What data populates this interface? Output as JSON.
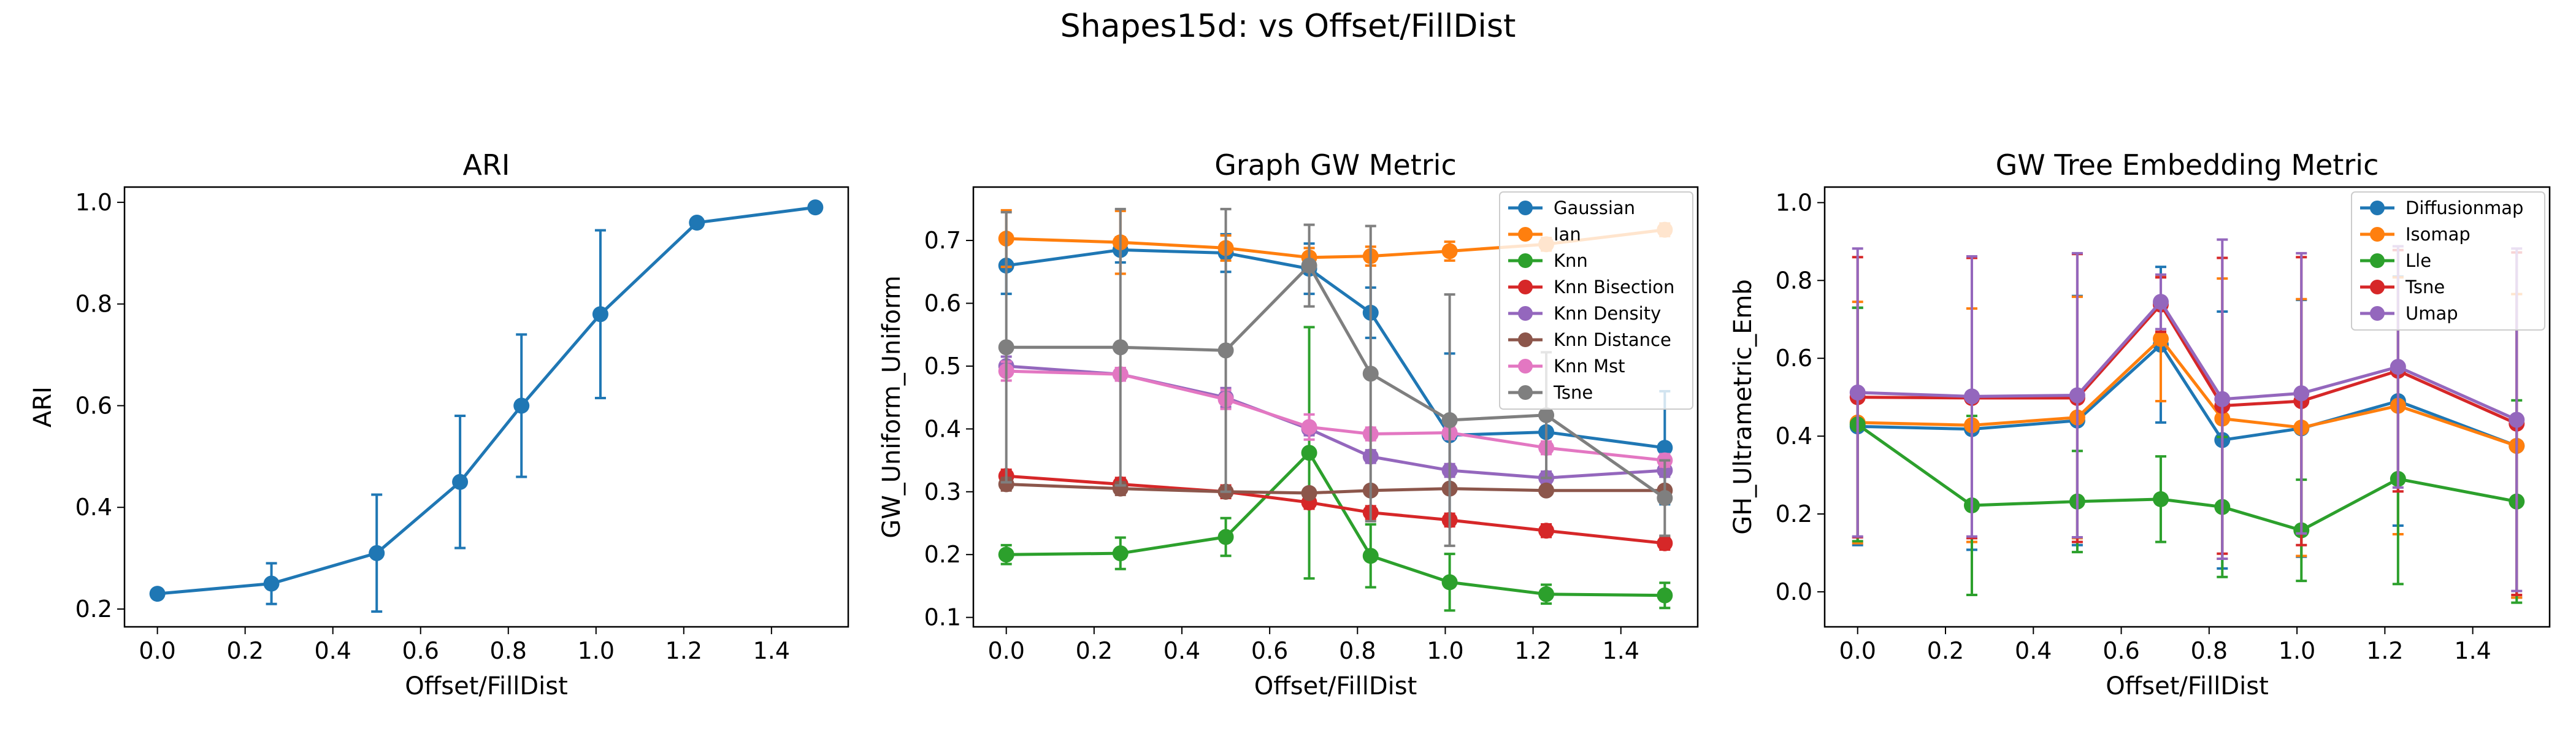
{
  "suptitle": "Shapes15d: vs Offset/FillDist",
  "chart_data": [
    {
      "type": "line",
      "title": "ARI",
      "xlabel": "Offset/FillDist",
      "ylabel": "ARI",
      "xlim": [
        -0.075,
        1.575
      ],
      "ylim": [
        0.165,
        1.03
      ],
      "xticks": [
        "0.0",
        "0.2",
        "0.4",
        "0.6",
        "0.8",
        "1.0",
        "1.2",
        "1.4"
      ],
      "yticks": [
        "0.2",
        "0.4",
        "0.6",
        "0.8",
        "1.0"
      ],
      "legend": null,
      "x": [
        0.0,
        0.26,
        0.5,
        0.69,
        0.83,
        1.01,
        1.23,
        1.5
      ],
      "series": [
        {
          "color": "#1f77b4",
          "values": [
            0.23,
            0.25,
            0.31,
            0.45,
            0.6,
            0.78,
            0.96,
            0.99
          ],
          "err": [
            0.0,
            0.04,
            0.115,
            0.13,
            0.14,
            0.165,
            0.0,
            0.0
          ]
        }
      ]
    },
    {
      "type": "line",
      "title": "Graph GW Metric",
      "xlabel": "Offset/FillDist",
      "ylabel": "GW_Uniform_Uniform",
      "xlim": [
        -0.075,
        1.575
      ],
      "ylim": [
        0.085,
        0.785
      ],
      "xticks": [
        "0.0",
        "0.2",
        "0.4",
        "0.6",
        "0.8",
        "1.0",
        "1.2",
        "1.4"
      ],
      "yticks": [
        "0.1",
        "0.2",
        "0.3",
        "0.4",
        "0.5",
        "0.6",
        "0.7"
      ],
      "legend": "top-right",
      "x": [
        0.0,
        0.26,
        0.5,
        0.69,
        0.83,
        1.01,
        1.23,
        1.5
      ],
      "series": [
        {
          "name": "Gaussian",
          "color": "#1f77b4",
          "values": [
            0.66,
            0.685,
            0.68,
            0.655,
            0.585,
            0.39,
            0.395,
            0.37
          ],
          "err": [
            0.045,
            0.02,
            0.03,
            0.04,
            0.04,
            0.13,
            0.03,
            0.09
          ]
        },
        {
          "name": "Ian",
          "color": "#ff7f0e",
          "values": [
            0.703,
            0.697,
            0.688,
            0.673,
            0.675,
            0.683,
            0.694,
            0.717
          ],
          "err": [
            0.045,
            0.05,
            0.02,
            0.015,
            0.015,
            0.015,
            0.01,
            0.01
          ]
        },
        {
          "name": "Knn",
          "color": "#2ca02c",
          "values": [
            0.2,
            0.202,
            0.228,
            0.362,
            0.198,
            0.156,
            0.137,
            0.135
          ],
          "err": [
            0.015,
            0.025,
            0.03,
            0.2,
            0.05,
            0.045,
            0.015,
            0.02
          ]
        },
        {
          "name": "Knn Bisection",
          "color": "#d62728",
          "values": [
            0.325,
            0.312,
            0.3,
            0.283,
            0.267,
            0.255,
            0.238,
            0.218
          ],
          "err": [
            0.01,
            0.01,
            0.01,
            0.01,
            0.01,
            0.01,
            0.01,
            0.01
          ]
        },
        {
          "name": "Knn Density",
          "color": "#9467bd",
          "values": [
            0.5,
            0.487,
            0.45,
            0.4,
            0.356,
            0.334,
            0.322,
            0.334
          ],
          "err": [
            0.015,
            0.01,
            0.015,
            0.01,
            0.01,
            0.01,
            0.01,
            0.01
          ]
        },
        {
          "name": "Knn Distance",
          "color": "#8c564b",
          "values": [
            0.312,
            0.305,
            0.3,
            0.298,
            0.302,
            0.305,
            0.302,
            0.302
          ],
          "err": [
            0.01,
            0.01,
            0.005,
            0.005,
            0.005,
            0.005,
            0.005,
            0.005
          ]
        },
        {
          "name": "Knn Mst",
          "color": "#e377c2",
          "values": [
            0.492,
            0.487,
            0.447,
            0.403,
            0.392,
            0.394,
            0.37,
            0.35
          ],
          "err": [
            0.015,
            0.01,
            0.015,
            0.02,
            0.01,
            0.01,
            0.01,
            0.01
          ]
        },
        {
          "name": "Tsne",
          "color": "#7f7f7f",
          "values": [
            0.53,
            0.53,
            0.525,
            0.66,
            0.488,
            0.414,
            0.422,
            0.29
          ],
          "err": [
            0.215,
            0.22,
            0.225,
            0.065,
            0.235,
            0.2,
            0.1,
            0.06
          ]
        }
      ]
    },
    {
      "type": "line",
      "title": "GW Tree Embedding Metric",
      "xlabel": "Offset/FillDist",
      "ylabel": "GH_Ultrametric_Emb",
      "xlim": [
        -0.075,
        1.575
      ],
      "ylim": [
        -0.09,
        1.04
      ],
      "xticks": [
        "0.0",
        "0.2",
        "0.4",
        "0.6",
        "0.8",
        "1.0",
        "1.2",
        "1.4"
      ],
      "yticks": [
        "0.0",
        "0.2",
        "0.4",
        "0.6",
        "0.8",
        "1.0"
      ],
      "legend": "top-right",
      "x": [
        0.0,
        0.26,
        0.5,
        0.69,
        0.83,
        1.01,
        1.23,
        1.5
      ],
      "series": [
        {
          "name": "Diffusionmap",
          "color": "#1f77b4",
          "values": [
            0.425,
            0.418,
            0.44,
            0.635,
            0.39,
            0.42,
            0.49,
            0.375
          ],
          "err": [
            0.305,
            0.31,
            0.32,
            0.2,
            0.33,
            0.33,
            0.32,
            0.39
          ]
        },
        {
          "name": "Isomap",
          "color": "#ff7f0e",
          "values": [
            0.435,
            0.428,
            0.448,
            0.65,
            0.445,
            0.422,
            0.478,
            0.375
          ],
          "err": [
            0.31,
            0.3,
            0.31,
            0.16,
            0.36,
            0.33,
            0.33,
            0.39
          ]
        },
        {
          "name": "Lle",
          "color": "#2ca02c",
          "values": [
            0.43,
            0.222,
            0.232,
            0.238,
            0.218,
            0.158,
            0.29,
            0.232
          ],
          "err": [
            0.3,
            0.23,
            0.13,
            0.11,
            0.18,
            0.13,
            0.27,
            0.26
          ]
        },
        {
          "name": "Tsne",
          "color": "#d62728",
          "values": [
            0.5,
            0.498,
            0.498,
            0.738,
            0.478,
            0.49,
            0.568,
            0.432
          ],
          "err": [
            0.36,
            0.36,
            0.37,
            0.07,
            0.38,
            0.37,
            0.31,
            0.44
          ]
        },
        {
          "name": "Umap",
          "color": "#9467bd",
          "values": [
            0.512,
            0.502,
            0.505,
            0.745,
            0.495,
            0.51,
            0.578,
            0.442
          ],
          "err": [
            0.37,
            0.36,
            0.365,
            0.07,
            0.41,
            0.36,
            0.31,
            0.44
          ]
        }
      ]
    }
  ]
}
